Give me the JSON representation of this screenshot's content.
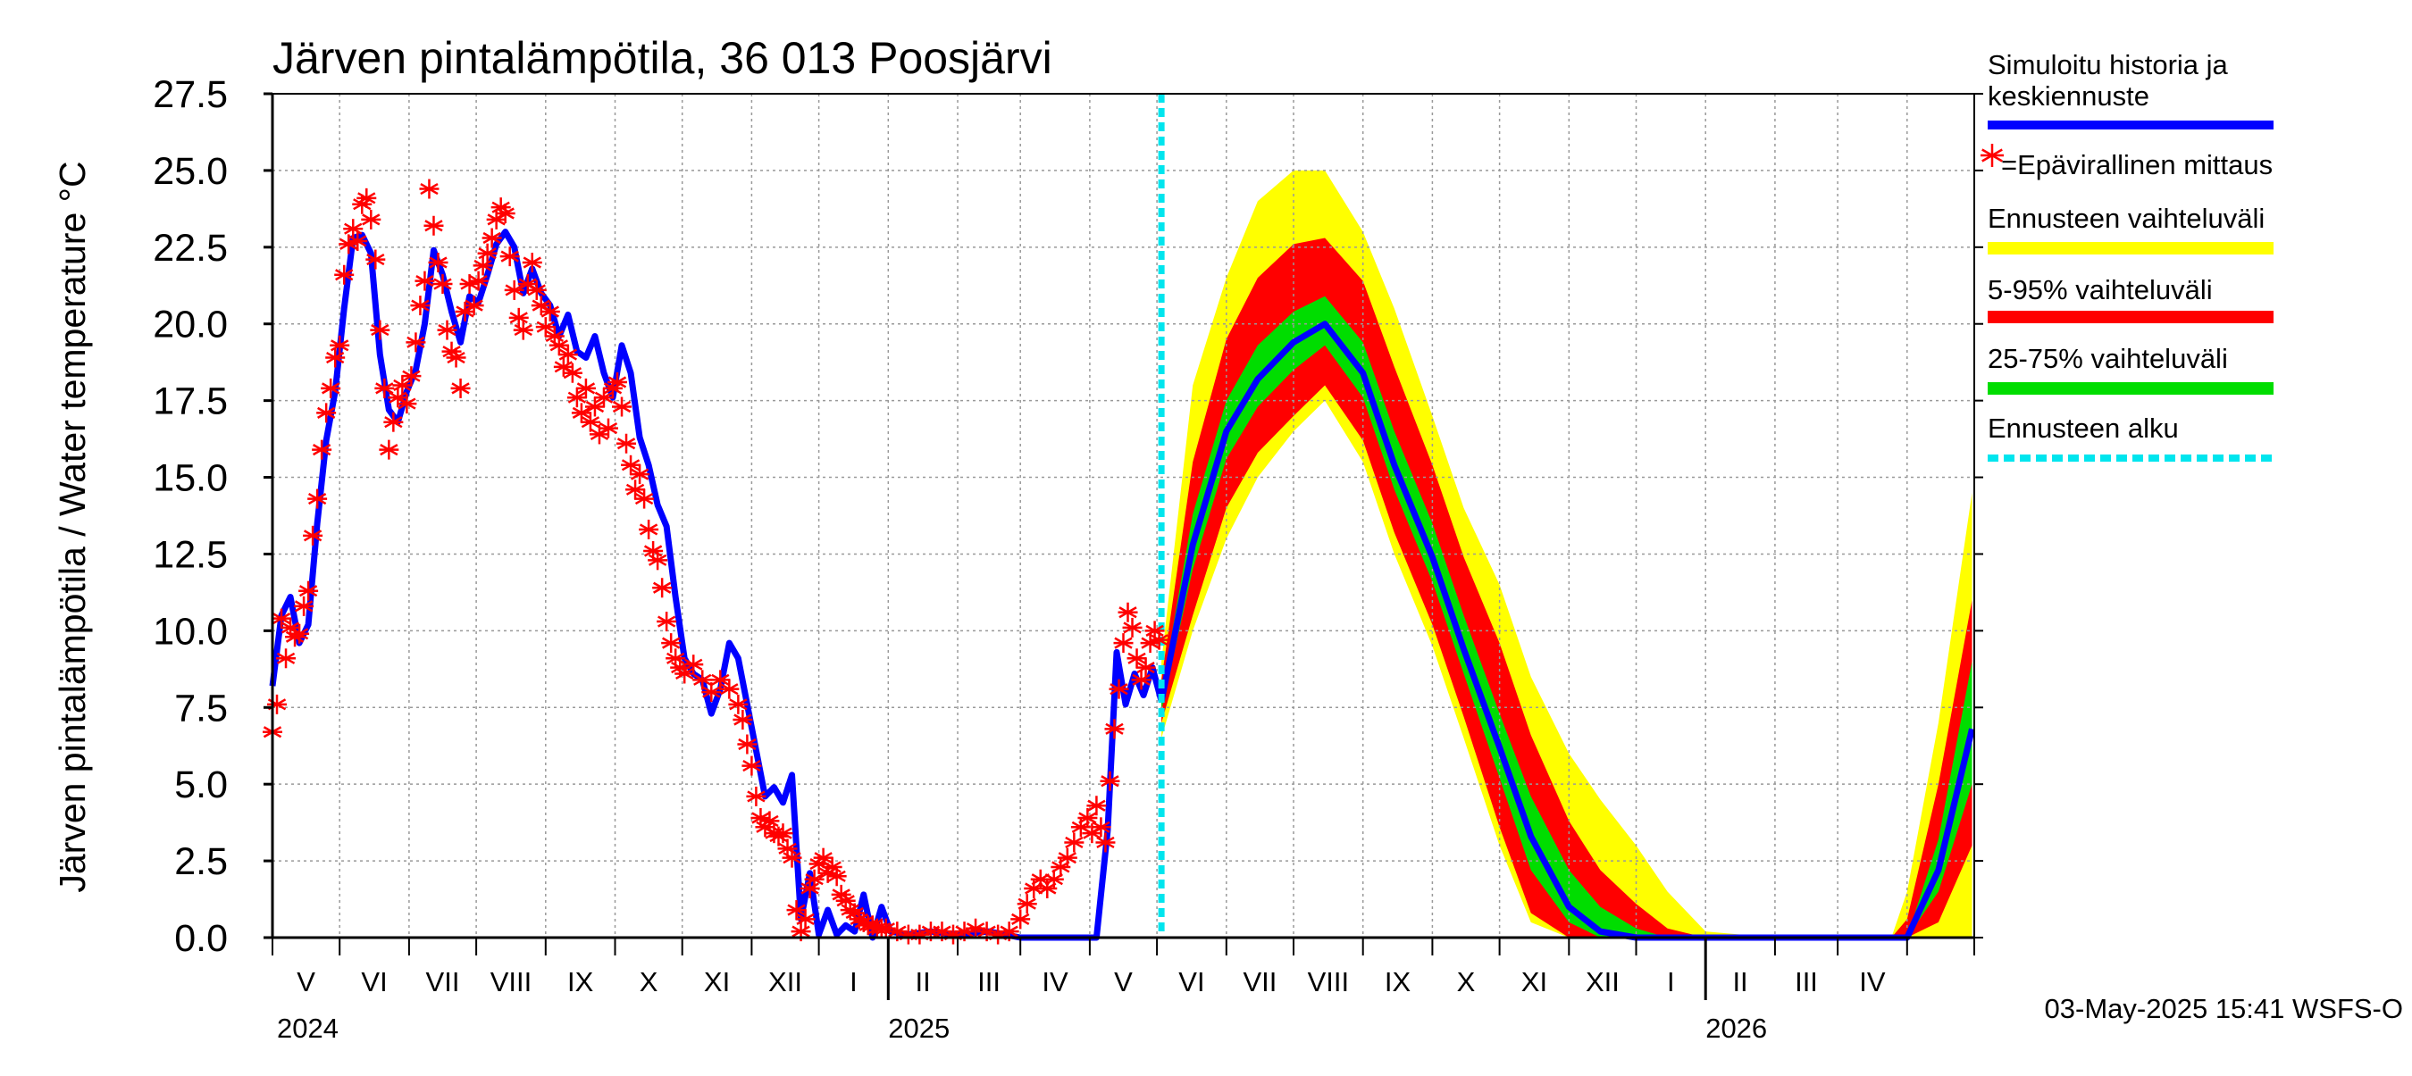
{
  "chart_data": {
    "type": "line",
    "title": "Järven pintalämpötila, 36 013 Poosjärvi",
    "ylabel": "Järven pintalämpötila / Water temperature °C",
    "ylim": [
      0,
      27.5
    ],
    "yticks": [
      "0.0",
      "2.5",
      "5.0",
      "7.5",
      "10.0",
      "12.5",
      "15.0",
      "17.5",
      "20.0",
      "22.5",
      "25.0",
      "27.5"
    ],
    "grid": true,
    "x_start": "2024-04-01",
    "x_end": "2026-05-01",
    "forecast_start": "2025-05-03",
    "month_labels": [
      "V",
      "VI",
      "VII",
      "VIII",
      "IX",
      "X",
      "XI",
      "XII",
      "I",
      "II",
      "III",
      "IV",
      "V",
      "VI",
      "VII",
      "VIII",
      "IX",
      "X",
      "XI",
      "XII",
      "I",
      "II",
      "III",
      "IV"
    ],
    "year_labels": [
      {
        "date": "2024-04-01",
        "label": "2024"
      },
      {
        "date": "2025-01-01",
        "label": "2025"
      },
      {
        "date": "2026-01-01",
        "label": "2026"
      }
    ],
    "legend": {
      "placement": "right",
      "items": [
        {
          "label": "Simuloitu historia ja keskiennuste",
          "color": "#0000ff",
          "kind": "line"
        },
        {
          "label": "=Epävirallinen mittaus",
          "color": "#ff0000",
          "kind": "star"
        },
        {
          "label": "Ennusteen vaihteluväli",
          "color": "#ffff00",
          "kind": "band"
        },
        {
          "label": "5-95% vaihteluväli",
          "color": "#ff0000",
          "kind": "band"
        },
        {
          "label": "25-75% vaihteluväli",
          "color": "#00dd00",
          "kind": "band"
        },
        {
          "label": "Ennusteen alku",
          "color": "#00e5ee",
          "kind": "dashed"
        }
      ]
    },
    "footer": "03-May-2025 15:41 WSFS-O",
    "simulated_history": [
      [
        "2024-04-01",
        8.2
      ],
      [
        "2024-04-05",
        10.5
      ],
      [
        "2024-04-09",
        11.1
      ],
      [
        "2024-04-13",
        9.6
      ],
      [
        "2024-04-17",
        10.2
      ],
      [
        "2024-04-21",
        13.5
      ],
      [
        "2024-04-25",
        16.2
      ],
      [
        "2024-04-29",
        17.8
      ],
      [
        "2024-05-03",
        20.5
      ],
      [
        "2024-05-07",
        22.8
      ],
      [
        "2024-05-11",
        22.9
      ],
      [
        "2024-05-15",
        22.3
      ],
      [
        "2024-05-19",
        19.0
      ],
      [
        "2024-05-23",
        17.2
      ],
      [
        "2024-05-27",
        16.8
      ],
      [
        "2024-05-31",
        17.8
      ],
      [
        "2024-06-04",
        18.5
      ],
      [
        "2024-06-08",
        20.0
      ],
      [
        "2024-06-12",
        22.4
      ],
      [
        "2024-06-16",
        21.6
      ],
      [
        "2024-06-20",
        20.4
      ],
      [
        "2024-06-24",
        19.4
      ],
      [
        "2024-06-28",
        20.9
      ],
      [
        "2024-07-02",
        20.7
      ],
      [
        "2024-07-06",
        21.6
      ],
      [
        "2024-07-10",
        22.6
      ],
      [
        "2024-07-14",
        23.0
      ],
      [
        "2024-07-18",
        22.5
      ],
      [
        "2024-07-22",
        21.0
      ],
      [
        "2024-07-26",
        21.8
      ],
      [
        "2024-07-30",
        21.0
      ],
      [
        "2024-08-03",
        20.6
      ],
      [
        "2024-08-07",
        19.6
      ],
      [
        "2024-08-11",
        20.3
      ],
      [
        "2024-08-15",
        19.1
      ],
      [
        "2024-08-19",
        18.9
      ],
      [
        "2024-08-23",
        19.6
      ],
      [
        "2024-08-27",
        18.4
      ],
      [
        "2024-08-31",
        17.6
      ],
      [
        "2024-09-04",
        19.3
      ],
      [
        "2024-09-08",
        18.4
      ],
      [
        "2024-09-12",
        16.3
      ],
      [
        "2024-09-16",
        15.4
      ],
      [
        "2024-09-20",
        14.1
      ],
      [
        "2024-09-24",
        13.4
      ],
      [
        "2024-09-28",
        11.1
      ],
      [
        "2024-10-02",
        9.1
      ],
      [
        "2024-10-06",
        8.6
      ],
      [
        "2024-10-10",
        8.4
      ],
      [
        "2024-10-14",
        7.3
      ],
      [
        "2024-10-18",
        8.1
      ],
      [
        "2024-10-22",
        9.6
      ],
      [
        "2024-10-26",
        9.1
      ],
      [
        "2024-10-30",
        7.6
      ],
      [
        "2024-11-03",
        6.1
      ],
      [
        "2024-11-07",
        4.6
      ],
      [
        "2024-11-11",
        4.9
      ],
      [
        "2024-11-15",
        4.4
      ],
      [
        "2024-11-19",
        5.3
      ],
      [
        "2024-11-23",
        0.6
      ],
      [
        "2024-11-27",
        2.1
      ],
      [
        "2024-12-01",
        0.1
      ],
      [
        "2024-12-05",
        0.9
      ],
      [
        "2024-12-09",
        0.1
      ],
      [
        "2024-12-13",
        0.4
      ],
      [
        "2024-12-17",
        0.2
      ],
      [
        "2024-12-21",
        1.4
      ],
      [
        "2024-12-25",
        0.0
      ],
      [
        "2024-12-29",
        1.0
      ],
      [
        "2025-01-02",
        0.2
      ],
      [
        "2025-01-10",
        0.1
      ],
      [
        "2025-01-20",
        0.2
      ],
      [
        "2025-02-01",
        0.1
      ],
      [
        "2025-02-15",
        0.2
      ],
      [
        "2025-03-01",
        0.0
      ],
      [
        "2025-03-15",
        0.0
      ],
      [
        "2025-03-31",
        0.0
      ],
      [
        "2025-04-04",
        0.0
      ],
      [
        "2025-04-09",
        3.5
      ],
      [
        "2025-04-13",
        9.3
      ],
      [
        "2025-04-17",
        7.6
      ],
      [
        "2025-04-21",
        8.6
      ],
      [
        "2025-04-25",
        7.9
      ],
      [
        "2025-04-29",
        8.8
      ],
      [
        "2025-05-03",
        7.7
      ]
    ],
    "forecast_series": {
      "x": [
        "2025-05-03",
        "2025-05-17",
        "2025-06-01",
        "2025-06-15",
        "2025-07-01",
        "2025-07-15",
        "2025-08-01",
        "2025-08-15",
        "2025-09-01",
        "2025-09-15",
        "2025-10-01",
        "2025-10-15",
        "2025-11-01",
        "2025-11-15",
        "2025-12-01",
        "2025-12-15",
        "2026-01-01",
        "2026-02-01",
        "2026-03-01",
        "2026-03-25",
        "2026-04-01",
        "2026-04-15",
        "2026-04-30"
      ],
      "min": [
        6.5,
        10.0,
        13.0,
        15.0,
        16.5,
        17.5,
        15.5,
        12.5,
        9.5,
        6.5,
        3.0,
        0.5,
        0,
        0,
        0,
        0,
        0,
        0,
        0,
        0,
        0,
        0,
        0
      ],
      "p05": [
        7.0,
        10.5,
        14.0,
        15.8,
        17.0,
        18.0,
        16.2,
        13.2,
        10.2,
        7.2,
        3.6,
        0.8,
        0,
        0,
        0,
        0,
        0,
        0,
        0,
        0,
        0,
        0.5,
        3.0
      ],
      "p25": [
        7.4,
        12.0,
        15.6,
        17.3,
        18.5,
        19.3,
        17.6,
        14.6,
        11.6,
        8.6,
        5.2,
        2.2,
        0.5,
        0,
        0,
        0,
        0,
        0,
        0,
        0,
        0,
        1.5,
        5.0
      ],
      "median": [
        7.7,
        12.8,
        16.5,
        18.2,
        19.4,
        20.0,
        18.4,
        15.4,
        12.4,
        9.4,
        6.2,
        3.3,
        1.0,
        0.2,
        0,
        0,
        0,
        0,
        0,
        0,
        0,
        2.2,
        6.8
      ],
      "p75": [
        8.0,
        13.8,
        17.5,
        19.3,
        20.4,
        20.9,
        19.4,
        16.5,
        13.5,
        10.5,
        7.3,
        4.6,
        2.2,
        1.0,
        0.3,
        0,
        0,
        0,
        0,
        0,
        0,
        3.2,
        9.0
      ],
      "p95": [
        8.4,
        15.5,
        19.5,
        21.5,
        22.6,
        22.8,
        21.4,
        18.6,
        15.4,
        12.4,
        9.6,
        6.6,
        3.8,
        2.2,
        1.1,
        0.3,
        0,
        0,
        0,
        0,
        0.6,
        5.0,
        11.0
      ],
      "max": [
        9.0,
        18.0,
        21.5,
        24.0,
        25.0,
        25.0,
        23.0,
        20.5,
        17.0,
        14.0,
        11.5,
        8.5,
        6.0,
        4.5,
        3.0,
        1.5,
        0.2,
        0,
        0,
        0,
        1.5,
        7.0,
        14.5
      ]
    },
    "measurements": [
      [
        "2024-04-01",
        6.7
      ],
      [
        "2024-04-03",
        7.6
      ],
      [
        "2024-04-05",
        10.4
      ],
      [
        "2024-04-07",
        9.1
      ],
      [
        "2024-04-09",
        10.1
      ],
      [
        "2024-04-11",
        9.8
      ],
      [
        "2024-04-13",
        9.9
      ],
      [
        "2024-04-15",
        10.8
      ],
      [
        "2024-04-17",
        11.3
      ],
      [
        "2024-04-19",
        13.1
      ],
      [
        "2024-04-21",
        14.3
      ],
      [
        "2024-04-23",
        15.9
      ],
      [
        "2024-04-25",
        17.1
      ],
      [
        "2024-04-27",
        17.9
      ],
      [
        "2024-04-29",
        18.9
      ],
      [
        "2024-05-01",
        19.3
      ],
      [
        "2024-05-03",
        21.6
      ],
      [
        "2024-05-05",
        22.6
      ],
      [
        "2024-05-07",
        23.1
      ],
      [
        "2024-05-09",
        22.7
      ],
      [
        "2024-05-11",
        23.9
      ],
      [
        "2024-05-13",
        24.1
      ],
      [
        "2024-05-15",
        23.4
      ],
      [
        "2024-05-17",
        22.1
      ],
      [
        "2024-05-19",
        19.8
      ],
      [
        "2024-05-21",
        17.9
      ],
      [
        "2024-05-23",
        15.9
      ],
      [
        "2024-05-25",
        16.8
      ],
      [
        "2024-05-27",
        17.6
      ],
      [
        "2024-05-29",
        18.0
      ],
      [
        "2024-05-31",
        17.4
      ],
      [
        "2024-06-02",
        18.3
      ],
      [
        "2024-06-04",
        19.4
      ],
      [
        "2024-06-06",
        20.6
      ],
      [
        "2024-06-08",
        21.4
      ],
      [
        "2024-06-10",
        24.4
      ],
      [
        "2024-06-12",
        23.2
      ],
      [
        "2024-06-14",
        22.0
      ],
      [
        "2024-06-16",
        21.3
      ],
      [
        "2024-06-18",
        19.8
      ],
      [
        "2024-06-20",
        19.1
      ],
      [
        "2024-06-22",
        18.9
      ],
      [
        "2024-06-24",
        17.9
      ],
      [
        "2024-06-26",
        20.4
      ],
      [
        "2024-06-28",
        21.3
      ],
      [
        "2024-06-30",
        20.6
      ],
      [
        "2024-07-02",
        21.4
      ],
      [
        "2024-07-04",
        21.9
      ],
      [
        "2024-07-06",
        22.3
      ],
      [
        "2024-07-08",
        22.8
      ],
      [
        "2024-07-10",
        23.4
      ],
      [
        "2024-07-12",
        23.8
      ],
      [
        "2024-07-14",
        23.6
      ],
      [
        "2024-07-16",
        22.2
      ],
      [
        "2024-07-18",
        21.1
      ],
      [
        "2024-07-20",
        20.2
      ],
      [
        "2024-07-22",
        19.8
      ],
      [
        "2024-07-24",
        21.3
      ],
      [
        "2024-07-26",
        22.0
      ],
      [
        "2024-07-28",
        21.1
      ],
      [
        "2024-07-30",
        20.6
      ],
      [
        "2024-08-01",
        19.9
      ],
      [
        "2024-08-03",
        20.4
      ],
      [
        "2024-08-05",
        19.6
      ],
      [
        "2024-08-07",
        19.3
      ],
      [
        "2024-08-09",
        18.6
      ],
      [
        "2024-08-11",
        19.0
      ],
      [
        "2024-08-13",
        18.4
      ],
      [
        "2024-08-15",
        17.6
      ],
      [
        "2024-08-17",
        17.1
      ],
      [
        "2024-08-19",
        17.9
      ],
      [
        "2024-08-21",
        16.8
      ],
      [
        "2024-08-23",
        17.3
      ],
      [
        "2024-08-25",
        16.4
      ],
      [
        "2024-08-27",
        17.6
      ],
      [
        "2024-08-29",
        16.6
      ],
      [
        "2024-08-31",
        17.9
      ],
      [
        "2024-09-02",
        18.1
      ],
      [
        "2024-09-04",
        17.3
      ],
      [
        "2024-09-06",
        16.1
      ],
      [
        "2024-09-08",
        15.4
      ],
      [
        "2024-09-10",
        14.6
      ],
      [
        "2024-09-12",
        15.1
      ],
      [
        "2024-09-14",
        14.3
      ],
      [
        "2024-09-16",
        13.3
      ],
      [
        "2024-09-18",
        12.6
      ],
      [
        "2024-09-20",
        12.3
      ],
      [
        "2024-09-22",
        11.4
      ],
      [
        "2024-09-24",
        10.3
      ],
      [
        "2024-09-26",
        9.6
      ],
      [
        "2024-09-28",
        9.1
      ],
      [
        "2024-09-30",
        8.8
      ],
      [
        "2024-10-02",
        8.6
      ],
      [
        "2024-10-06",
        8.9
      ],
      [
        "2024-10-10",
        8.4
      ],
      [
        "2024-10-14",
        8.0
      ],
      [
        "2024-10-18",
        8.4
      ],
      [
        "2024-10-22",
        8.1
      ],
      [
        "2024-10-26",
        7.6
      ],
      [
        "2024-10-28",
        7.1
      ],
      [
        "2024-10-30",
        6.3
      ],
      [
        "2024-11-01",
        5.6
      ],
      [
        "2024-11-03",
        4.6
      ],
      [
        "2024-11-05",
        3.9
      ],
      [
        "2024-11-07",
        3.6
      ],
      [
        "2024-11-09",
        3.8
      ],
      [
        "2024-11-11",
        3.4
      ],
      [
        "2024-11-13",
        3.3
      ],
      [
        "2024-11-15",
        3.4
      ],
      [
        "2024-11-17",
        2.9
      ],
      [
        "2024-11-19",
        2.6
      ],
      [
        "2024-11-21",
        0.9
      ],
      [
        "2024-11-23",
        0.2
      ],
      [
        "2024-11-25",
        0.6
      ],
      [
        "2024-11-27",
        1.6
      ],
      [
        "2024-11-29",
        1.9
      ],
      [
        "2024-12-01",
        2.4
      ],
      [
        "2024-12-03",
        2.6
      ],
      [
        "2024-12-05",
        2.1
      ],
      [
        "2024-12-07",
        2.3
      ],
      [
        "2024-12-09",
        2.0
      ],
      [
        "2024-12-11",
        1.4
      ],
      [
        "2024-12-13",
        1.2
      ],
      [
        "2024-12-15",
        0.9
      ],
      [
        "2024-12-17",
        0.8
      ],
      [
        "2024-12-19",
        0.6
      ],
      [
        "2024-12-21",
        0.5
      ],
      [
        "2024-12-23",
        0.4
      ],
      [
        "2024-12-25",
        0.4
      ],
      [
        "2024-12-27",
        0.3
      ],
      [
        "2024-12-29",
        0.3
      ],
      [
        "2024-12-31",
        0.3
      ],
      [
        "2025-01-05",
        0.2
      ],
      [
        "2025-01-10",
        0.1
      ],
      [
        "2025-01-15",
        0.1
      ],
      [
        "2025-01-20",
        0.2
      ],
      [
        "2025-01-25",
        0.2
      ],
      [
        "2025-01-30",
        0.1
      ],
      [
        "2025-02-04",
        0.2
      ],
      [
        "2025-02-09",
        0.3
      ],
      [
        "2025-02-14",
        0.2
      ],
      [
        "2025-02-19",
        0.1
      ],
      [
        "2025-02-24",
        0.2
      ],
      [
        "2025-03-01",
        0.6
      ],
      [
        "2025-03-04",
        1.1
      ],
      [
        "2025-03-07",
        1.6
      ],
      [
        "2025-03-10",
        1.9
      ],
      [
        "2025-03-13",
        1.6
      ],
      [
        "2025-03-16",
        1.9
      ],
      [
        "2025-03-19",
        2.3
      ],
      [
        "2025-03-22",
        2.6
      ],
      [
        "2025-03-25",
        3.1
      ],
      [
        "2025-03-28",
        3.6
      ],
      [
        "2025-03-31",
        3.9
      ],
      [
        "2025-04-02",
        3.4
      ],
      [
        "2025-04-04",
        4.3
      ],
      [
        "2025-04-06",
        3.6
      ],
      [
        "2025-04-08",
        3.1
      ],
      [
        "2025-04-10",
        5.1
      ],
      [
        "2025-04-12",
        6.8
      ],
      [
        "2025-04-14",
        8.1
      ],
      [
        "2025-04-16",
        9.6
      ],
      [
        "2025-04-18",
        10.6
      ],
      [
        "2025-04-20",
        10.1
      ],
      [
        "2025-04-22",
        9.1
      ],
      [
        "2025-04-24",
        8.4
      ],
      [
        "2025-04-26",
        8.8
      ],
      [
        "2025-04-28",
        9.6
      ],
      [
        "2025-04-30",
        10.0
      ],
      [
        "2025-05-02",
        9.7
      ]
    ]
  }
}
